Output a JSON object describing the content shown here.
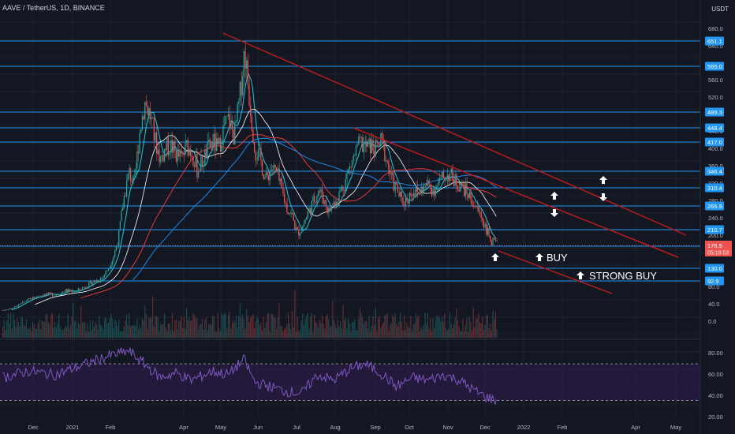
{
  "header": {
    "symbol_text": "AAVE / TetherUS, 1D, BINANCE",
    "currency": "USDT"
  },
  "colors": {
    "background": "#131722",
    "grid": "#1e222d",
    "bull": "#26a69a",
    "bear": "#ef5350",
    "level_line": "#2196f3",
    "channel": "#b71c1c",
    "rsi_line": "#7e57c2",
    "rsi_band": "#311b4f",
    "ma_fast": "#26c6da",
    "ma_mid": "#ffffff",
    "ma_slow": "#e53935",
    "ma_blue": "#1e88e5"
  },
  "chart_data": {
    "type": "candlestick",
    "x_tick_labels": [
      "Dec",
      "2021",
      "Feb",
      "Apr",
      "May",
      "Jun",
      "Jul",
      "Aug",
      "Sep",
      "Oct",
      "Nov",
      "Dec",
      "2022",
      "Feb",
      "Apr",
      "May"
    ],
    "y_tick_labels": [
      "680.0",
      "640.0",
      "560.0",
      "520.0",
      "440.0",
      "400.0",
      "360.0",
      "320.0",
      "280.0",
      "240.0",
      "200.0",
      "80.0",
      "40.0",
      "0.0"
    ],
    "ylim_price": [
      -10,
      720
    ],
    "horizontal_levels": [
      651.1,
      595.0,
      489.3,
      448.4,
      417.0,
      346.4,
      310.4,
      265.9,
      210.7,
      175.8,
      130.0,
      92.9
    ],
    "current_price": {
      "value": 176.5,
      "countdown": "05:18:53"
    },
    "price_path": [
      [
        0,
        25
      ],
      [
        2,
        30
      ],
      [
        5,
        50
      ],
      [
        8,
        62
      ],
      [
        10,
        60
      ],
      [
        12,
        70
      ],
      [
        14,
        68
      ],
      [
        16,
        82
      ],
      [
        17,
        88
      ],
      [
        19,
        100
      ],
      [
        20,
        120
      ],
      [
        21,
        145
      ],
      [
        22,
        190
      ],
      [
        23,
        280
      ],
      [
        24,
        340
      ],
      [
        25,
        310
      ],
      [
        26,
        430
      ],
      [
        27,
        500
      ],
      [
        28,
        470
      ],
      [
        29,
        410
      ],
      [
        30,
        370
      ],
      [
        31,
        395
      ],
      [
        32,
        400
      ],
      [
        33,
        380
      ],
      [
        34,
        370
      ],
      [
        35,
        400
      ],
      [
        36,
        385
      ],
      [
        37,
        345
      ],
      [
        38,
        365
      ],
      [
        39,
        390
      ],
      [
        40,
        410
      ],
      [
        41,
        390
      ],
      [
        42,
        440
      ],
      [
        43,
        460
      ],
      [
        44,
        420
      ],
      [
        45,
        500
      ],
      [
        46,
        620
      ],
      [
        47,
        500
      ],
      [
        48,
        390
      ],
      [
        49,
        370
      ],
      [
        50,
        320
      ],
      [
        51,
        350
      ],
      [
        52,
        340
      ],
      [
        53,
        300
      ],
      [
        54,
        260
      ],
      [
        55,
        240
      ],
      [
        56,
        200
      ],
      [
        57,
        215
      ],
      [
        58,
        245
      ],
      [
        59,
        270
      ],
      [
        60,
        300
      ],
      [
        61,
        280
      ],
      [
        62,
        250
      ],
      [
        63,
        270
      ],
      [
        64,
        290
      ],
      [
        65,
        315
      ],
      [
        66,
        350
      ],
      [
        67,
        380
      ],
      [
        68,
        405
      ],
      [
        69,
        395
      ],
      [
        70,
        400
      ],
      [
        71,
        390
      ],
      [
        72,
        410
      ],
      [
        73,
        370
      ],
      [
        74,
        320
      ],
      [
        75,
        300
      ],
      [
        76,
        270
      ],
      [
        77,
        280
      ],
      [
        78,
        300
      ],
      [
        79,
        290
      ],
      [
        80,
        305
      ],
      [
        81,
        310
      ],
      [
        82,
        300
      ],
      [
        83,
        315
      ],
      [
        84,
        330
      ],
      [
        85,
        335
      ],
      [
        86,
        320
      ],
      [
        87,
        310
      ],
      [
        88,
        300
      ],
      [
        89,
        280
      ],
      [
        90,
        260
      ],
      [
        91,
        240
      ],
      [
        92,
        210
      ],
      [
        93,
        180
      ],
      [
        94,
        176
      ]
    ],
    "annotations": [
      {
        "type": "arrow-up",
        "text": "BUY",
        "price": 143
      },
      {
        "type": "arrow-up",
        "text": "STRONG BUY",
        "price": 97
      }
    ],
    "rsi": {
      "y_tick_labels": [
        "80.00",
        "60.00",
        "40.00",
        "20.00"
      ],
      "ylim": [
        15,
        95
      ],
      "band": [
        30,
        70
      ],
      "path": [
        [
          0,
          55
        ],
        [
          5,
          62
        ],
        [
          10,
          58
        ],
        [
          15,
          68
        ],
        [
          20,
          78
        ],
        [
          24,
          84
        ],
        [
          27,
          70
        ],
        [
          30,
          55
        ],
        [
          33,
          60
        ],
        [
          36,
          52
        ],
        [
          40,
          62
        ],
        [
          43,
          58
        ],
        [
          46,
          75
        ],
        [
          48,
          50
        ],
        [
          51,
          45
        ],
        [
          54,
          40
        ],
        [
          57,
          38
        ],
        [
          60,
          58
        ],
        [
          63,
          52
        ],
        [
          66,
          64
        ],
        [
          69,
          70
        ],
        [
          72,
          60
        ],
        [
          75,
          45
        ],
        [
          78,
          55
        ],
        [
          81,
          52
        ],
        [
          84,
          58
        ],
        [
          87,
          52
        ],
        [
          90,
          40
        ],
        [
          92,
          34
        ],
        [
          94,
          30
        ]
      ]
    }
  }
}
